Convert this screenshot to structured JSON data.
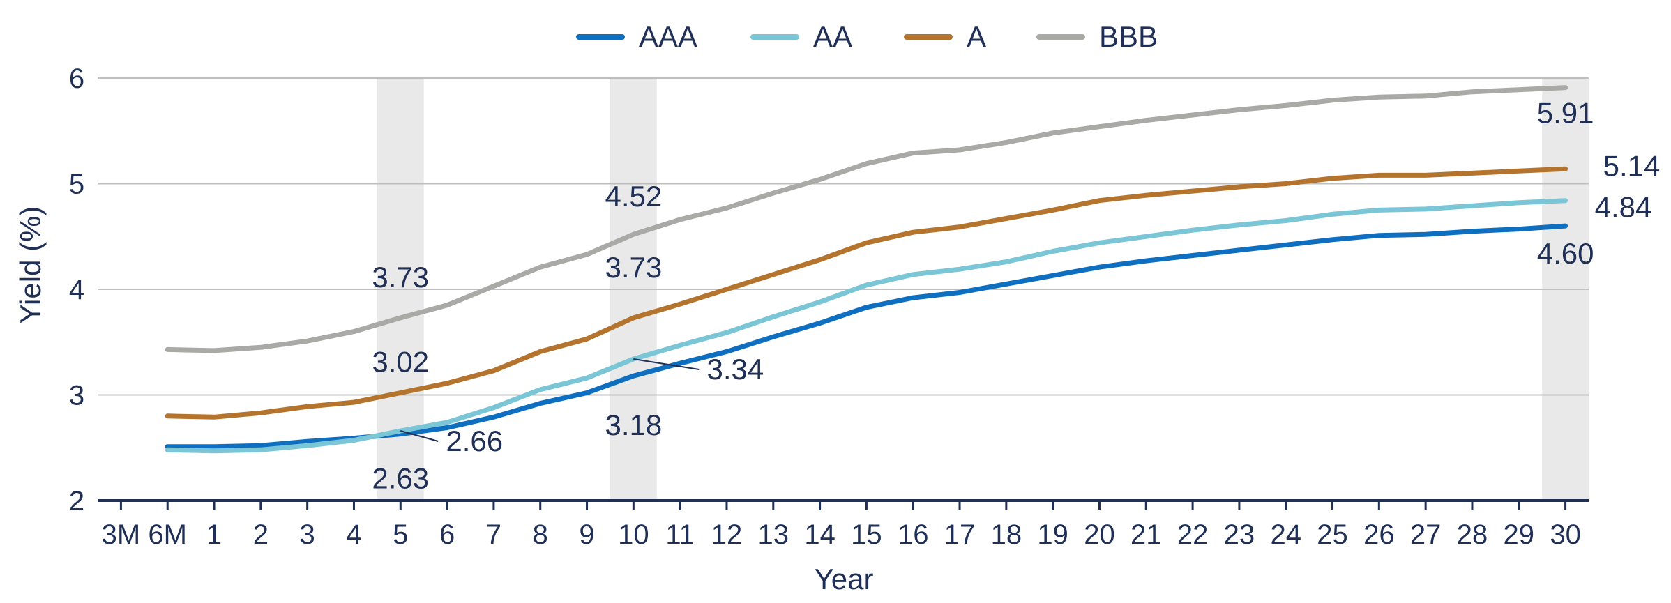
{
  "chart_data": {
    "type": "line",
    "title": "",
    "xlabel": "Year",
    "ylabel": "Yield (%)",
    "ylim": [
      2,
      6
    ],
    "yticks": [
      2,
      3,
      4,
      5,
      6
    ],
    "grid": true,
    "legend_position": "top-center",
    "categories": [
      "3M",
      "6M",
      "1",
      "2",
      "3",
      "4",
      "5",
      "6",
      "7",
      "8",
      "9",
      "10",
      "11",
      "12",
      "13",
      "14",
      "15",
      "16",
      "17",
      "18",
      "19",
      "20",
      "21",
      "22",
      "23",
      "24",
      "25",
      "26",
      "27",
      "28",
      "29",
      "30"
    ],
    "highlight_bands": [
      "5",
      "10",
      "30"
    ],
    "series": [
      {
        "name": "AAA",
        "color": "#0e6fc0",
        "values": [
          null,
          2.51,
          2.51,
          2.52,
          2.56,
          2.59,
          2.63,
          2.69,
          2.79,
          2.92,
          3.02,
          3.18,
          3.3,
          3.41,
          3.55,
          3.68,
          3.83,
          3.92,
          3.97,
          4.05,
          4.13,
          4.21,
          4.27,
          4.32,
          4.37,
          4.42,
          4.47,
          4.51,
          4.52,
          4.55,
          4.57,
          4.6
        ]
      },
      {
        "name": "AA",
        "color": "#7bc6d6",
        "values": [
          null,
          2.48,
          2.47,
          2.48,
          2.52,
          2.57,
          2.66,
          2.74,
          2.88,
          3.05,
          3.16,
          3.34,
          3.47,
          3.59,
          3.74,
          3.88,
          4.04,
          4.14,
          4.19,
          4.26,
          4.36,
          4.44,
          4.5,
          4.56,
          4.61,
          4.65,
          4.71,
          4.75,
          4.76,
          4.79,
          4.82,
          4.84
        ]
      },
      {
        "name": "A",
        "color": "#b5742e",
        "values": [
          null,
          2.8,
          2.79,
          2.83,
          2.89,
          2.93,
          3.02,
          3.11,
          3.23,
          3.41,
          3.53,
          3.73,
          3.86,
          4.0,
          4.14,
          4.28,
          4.44,
          4.54,
          4.59,
          4.67,
          4.75,
          4.84,
          4.89,
          4.93,
          4.97,
          5.0,
          5.05,
          5.08,
          5.08,
          5.1,
          5.12,
          5.14
        ]
      },
      {
        "name": "BBB",
        "color": "#a9a9a6",
        "values": [
          null,
          3.43,
          3.42,
          3.45,
          3.51,
          3.6,
          3.73,
          3.85,
          4.03,
          4.21,
          4.33,
          4.52,
          4.66,
          4.77,
          4.91,
          5.04,
          5.19,
          5.29,
          5.32,
          5.39,
          5.48,
          5.54,
          5.6,
          5.65,
          5.7,
          5.74,
          5.79,
          5.82,
          5.83,
          5.87,
          5.89,
          5.91
        ]
      }
    ],
    "annotations": [
      {
        "text": "3.73",
        "series": "BBB",
        "x": "5"
      },
      {
        "text": "3.02",
        "series": "A",
        "x": "5"
      },
      {
        "text": "2.66",
        "series": "AA",
        "x": "5"
      },
      {
        "text": "2.63",
        "series": "AAA",
        "x": "5"
      },
      {
        "text": "4.52",
        "series": "BBB",
        "x": "10"
      },
      {
        "text": "3.73",
        "series": "A",
        "x": "10"
      },
      {
        "text": "3.34",
        "series": "AA",
        "x": "10"
      },
      {
        "text": "3.18",
        "series": "AAA",
        "x": "10"
      },
      {
        "text": "5.91",
        "series": "BBB",
        "x": "30"
      },
      {
        "text": "5.14",
        "series": "A",
        "x": "30"
      },
      {
        "text": "4.84",
        "series": "AA",
        "x": "30"
      },
      {
        "text": "4.60",
        "series": "AAA",
        "x": "30"
      }
    ]
  }
}
